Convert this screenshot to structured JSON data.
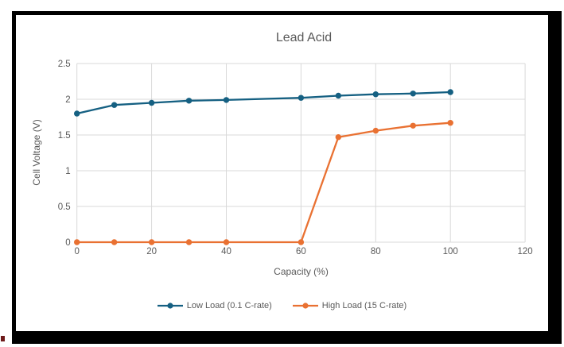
{
  "chart": {
    "title": "Lead Acid",
    "x_axis_title": "Capacity (%)",
    "y_axis_title": "Cell Voltage (V)"
  },
  "chart_data": {
    "type": "line",
    "title": "Lead Acid",
    "xlabel": "Capacity (%)",
    "ylabel": "Cell Voltage (V)",
    "x": [
      0,
      10,
      20,
      30,
      40,
      60,
      70,
      80,
      90,
      100
    ],
    "series": [
      {
        "name": "Low Load (0.1 C-rate)",
        "color": "#156082",
        "values": [
          1.8,
          1.92,
          1.95,
          1.98,
          1.99,
          2.02,
          2.05,
          2.07,
          2.08,
          2.1
        ]
      },
      {
        "name": "High Load (15 C-rate)",
        "color": "#E97132",
        "values": [
          0,
          0,
          0,
          0,
          0,
          0,
          1.47,
          1.56,
          1.63,
          1.67
        ]
      }
    ],
    "xlim": [
      0,
      120
    ],
    "ylim": [
      0,
      2.5
    ],
    "xticks": [
      0,
      20,
      40,
      60,
      80,
      100,
      120
    ],
    "yticks": [
      0,
      0.5,
      1,
      1.5,
      2,
      2.5
    ],
    "xtick_labels": [
      "0",
      "20",
      "40",
      "60",
      "80",
      "100",
      "120"
    ],
    "ytick_labels": [
      "0",
      "0.5",
      "1",
      "1.5",
      "2",
      "2.5"
    ],
    "grid": true,
    "legend_position": "bottom"
  },
  "colors": {
    "gridline": "#D9D9D9",
    "text": "#595959",
    "frame": "#000000",
    "background": "#FFFFFF"
  }
}
